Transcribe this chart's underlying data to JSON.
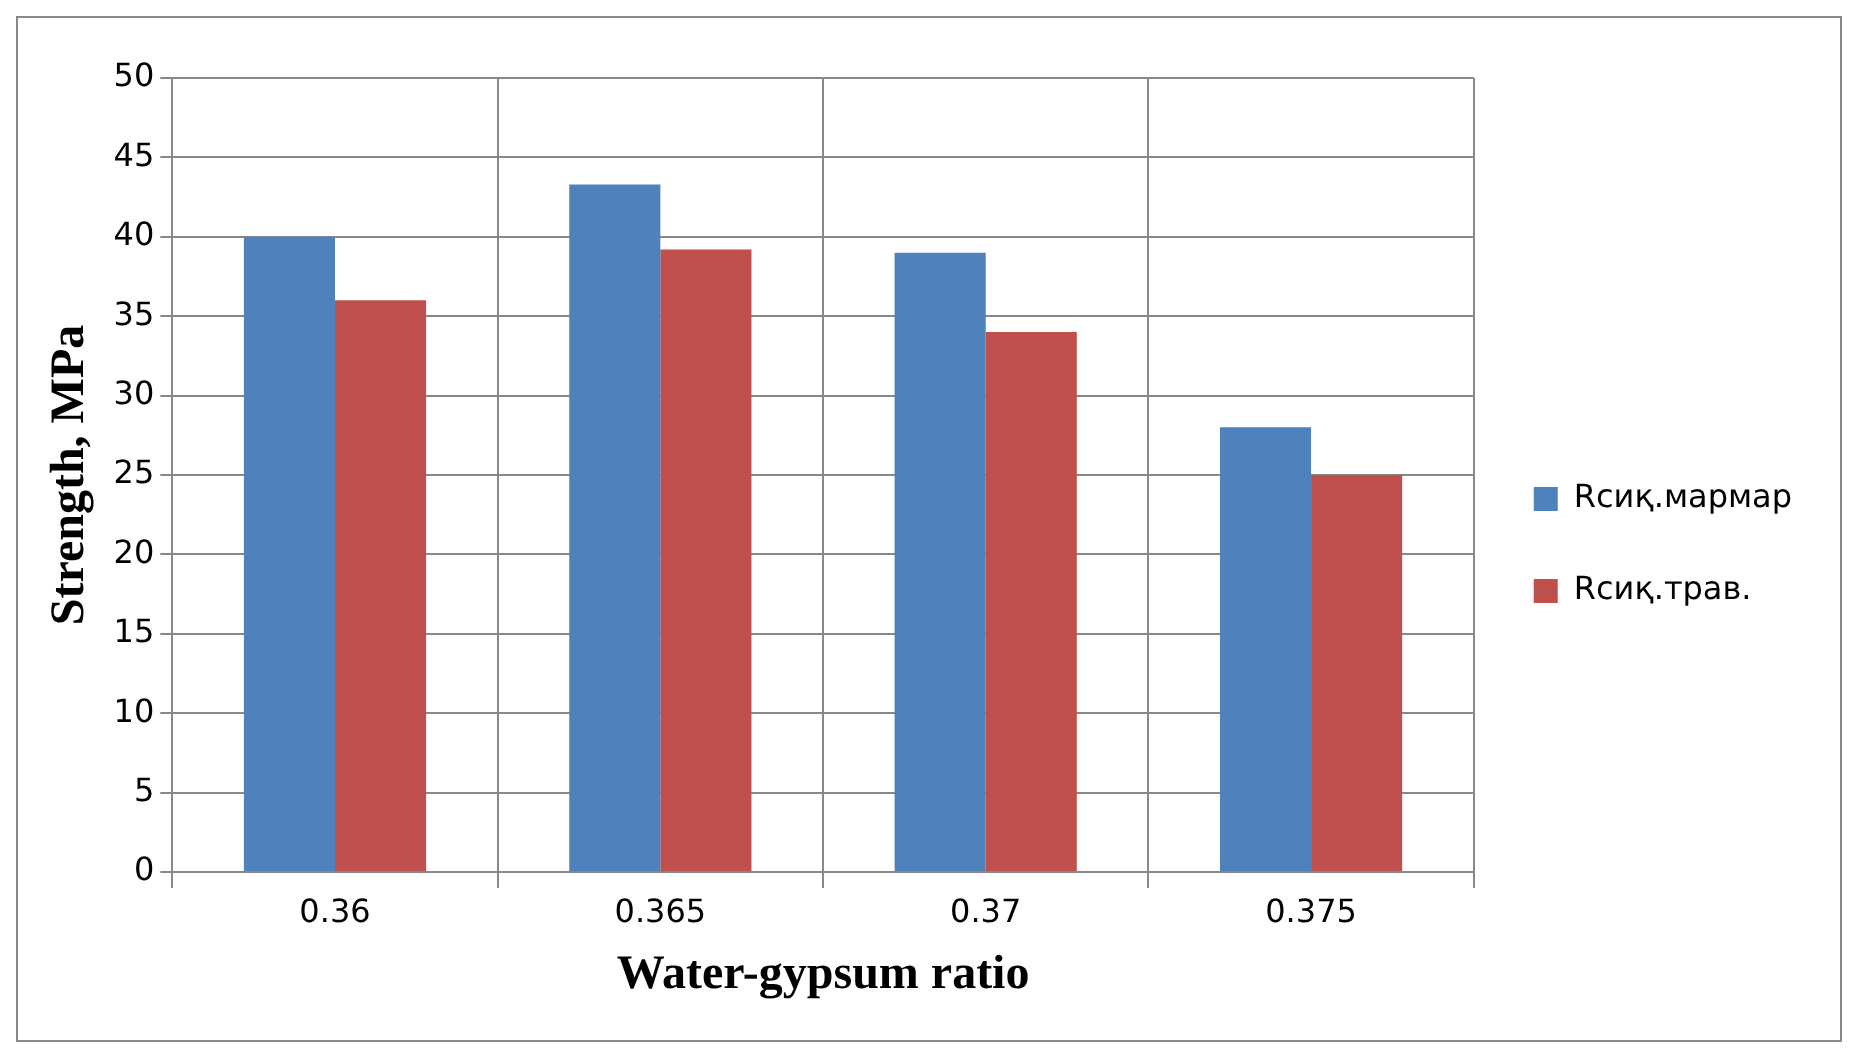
{
  "chart_data": {
    "type": "bar",
    "xlabel": "Water-gypsum ratio",
    "ylabel": "Strength, MPa",
    "categories": [
      "0.36",
      "0.365",
      "0.37",
      "0.375"
    ],
    "series": [
      {
        "name": "Rсиқ.мармар",
        "color": "#4f81bd",
        "values": [
          40,
          43.3,
          39,
          28
        ]
      },
      {
        "name": "Rсиқ.трав.",
        "color": "#c0504d",
        "values": [
          36,
          39.2,
          34,
          25
        ]
      }
    ],
    "ylim": [
      0,
      50
    ],
    "yticks": [
      0,
      5,
      10,
      15,
      20,
      25,
      30,
      35,
      40,
      45,
      50
    ],
    "grid": true,
    "legend": "right"
  }
}
